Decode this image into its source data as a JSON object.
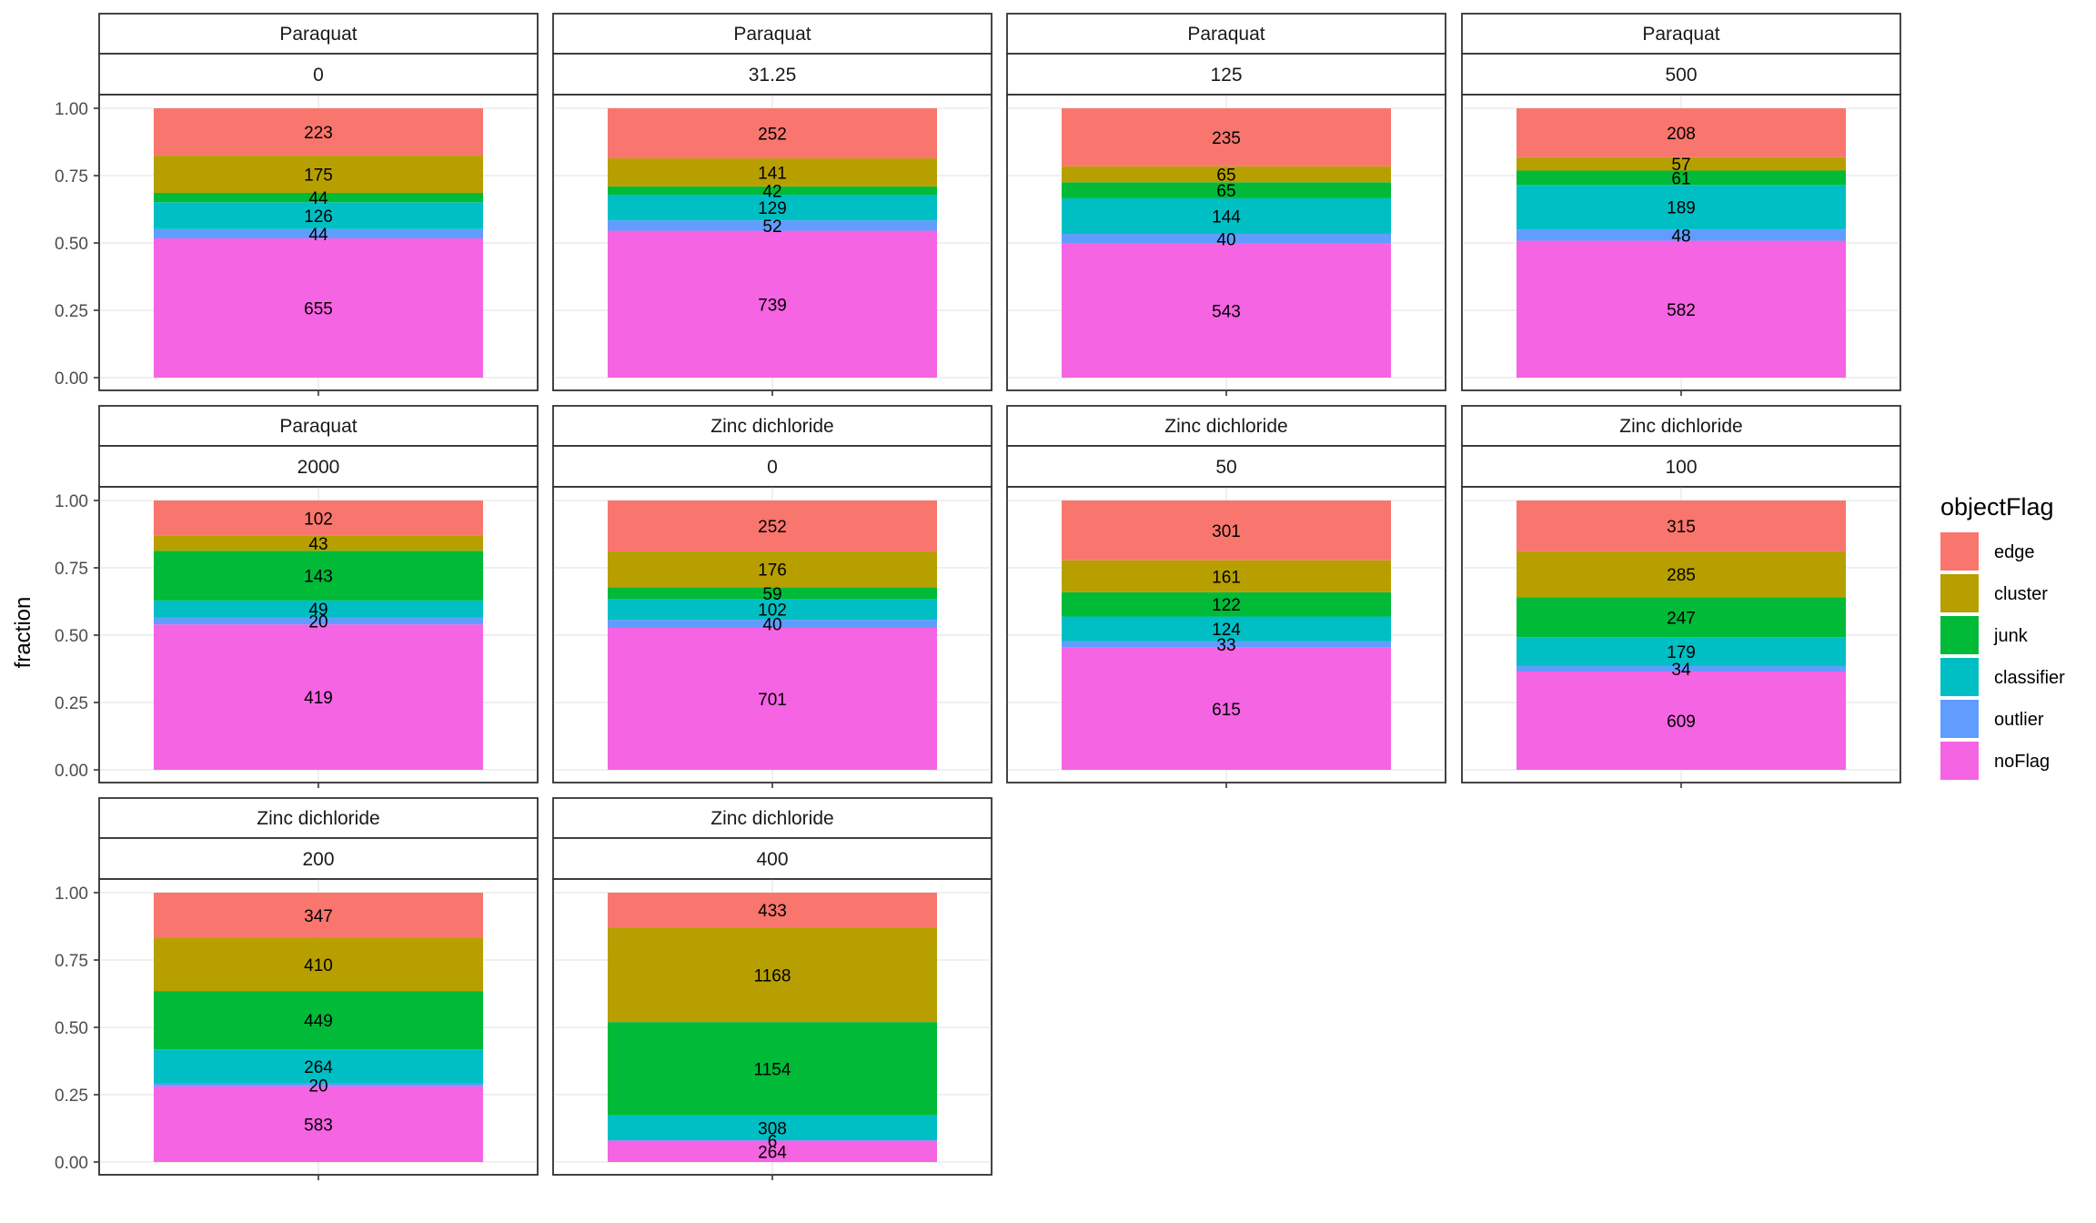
{
  "chart_data": {
    "type": "bar",
    "stacked": true,
    "position": "fill",
    "facet": "wrap",
    "facet_ncol": 4,
    "xlabel": "",
    "ylabel": "fraction",
    "ylim": [
      0,
      1
    ],
    "y_ticks": [
      "0.00",
      "0.25",
      "0.50",
      "0.75",
      "1.00"
    ],
    "grid": true,
    "legend": {
      "title": "objectFlag",
      "placement": "right",
      "entries": [
        {
          "name": "edge",
          "color": "#F8766D"
        },
        {
          "name": "cluster",
          "color": "#B79F00"
        },
        {
          "name": "junk",
          "color": "#00BA38"
        },
        {
          "name": "classifier",
          "color": "#00BFC4"
        },
        {
          "name": "outlier",
          "color": "#619CFF"
        },
        {
          "name": "noFlag",
          "color": "#F564E3"
        }
      ]
    },
    "stack_order_bottom_to_top": [
      "noFlag",
      "outlier",
      "classifier",
      "junk",
      "cluster",
      "edge"
    ],
    "panels": [
      {
        "compound": "Paraquat",
        "dose": "0",
        "counts": {
          "edge": 223,
          "cluster": 175,
          "junk": 44,
          "classifier": 126,
          "outlier": 44,
          "noFlag": 655
        }
      },
      {
        "compound": "Paraquat",
        "dose": "31.25",
        "counts": {
          "edge": 252,
          "cluster": 141,
          "junk": 42,
          "classifier": 129,
          "outlier": 52,
          "noFlag": 739
        }
      },
      {
        "compound": "Paraquat",
        "dose": "125",
        "counts": {
          "edge": 235,
          "cluster": 65,
          "junk": 65,
          "classifier": 144,
          "outlier": 40,
          "noFlag": 543
        }
      },
      {
        "compound": "Paraquat",
        "dose": "500",
        "counts": {
          "edge": 208,
          "cluster": 57,
          "junk": 61,
          "classifier": 189,
          "outlier": 48,
          "noFlag": 582
        }
      },
      {
        "compound": "Paraquat",
        "dose": "2000",
        "counts": {
          "edge": 102,
          "cluster": 43,
          "junk": 143,
          "classifier": 49,
          "outlier": 20,
          "noFlag": 419
        }
      },
      {
        "compound": "Zinc dichloride",
        "dose": "0",
        "counts": {
          "edge": 252,
          "cluster": 176,
          "junk": 59,
          "classifier": 102,
          "outlier": 40,
          "noFlag": 701
        }
      },
      {
        "compound": "Zinc dichloride",
        "dose": "50",
        "counts": {
          "edge": 301,
          "cluster": 161,
          "junk": 122,
          "classifier": 124,
          "outlier": 33,
          "noFlag": 615
        }
      },
      {
        "compound": "Zinc dichloride",
        "dose": "100",
        "counts": {
          "edge": 315,
          "cluster": 285,
          "junk": 247,
          "classifier": 179,
          "outlier": 34,
          "noFlag": 609
        }
      },
      {
        "compound": "Zinc dichloride",
        "dose": "200",
        "counts": {
          "edge": 347,
          "cluster": 410,
          "junk": 449,
          "classifier": 264,
          "outlier": 20,
          "noFlag": 583
        }
      },
      {
        "compound": "Zinc dichloride",
        "dose": "400",
        "counts": {
          "edge": 433,
          "cluster": 1168,
          "junk": 1154,
          "classifier": 308,
          "outlier": 6,
          "noFlag": 264
        }
      }
    ]
  }
}
